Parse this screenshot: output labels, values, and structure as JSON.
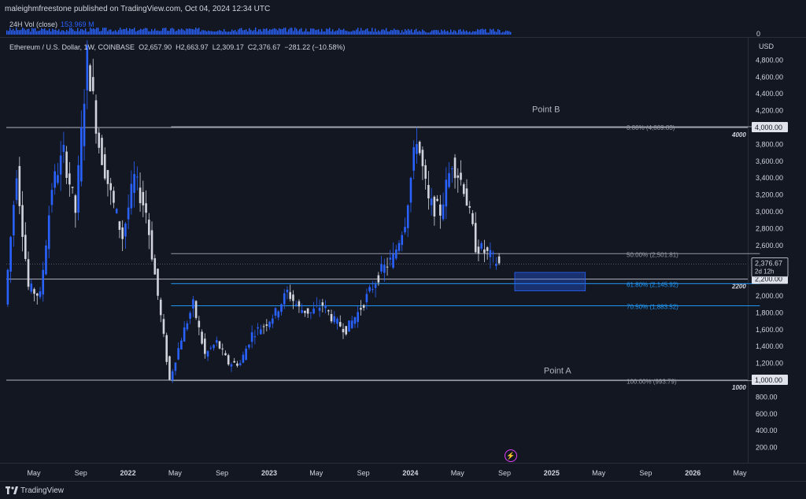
{
  "header": {
    "publisher": "maleighmfreestone published on TradingView.com, Oct 04, 2024 12:34 UTC"
  },
  "volume": {
    "label": "24H Vol (close)",
    "value": "153.969 M",
    "zero_label": "0"
  },
  "legend": {
    "symbol": "Ethereum / U.S. Dollar, 1W, COINBASE",
    "open": "O2,657.90",
    "high": "H2,663.97",
    "low": "L2,309.17",
    "close": "C2,376.67",
    "change": "−281.22 (−10.58%)"
  },
  "footer": {
    "brand": "TradingView"
  },
  "colors": {
    "background": "#131722",
    "up": "#2962ff",
    "down": "#d1d4dc",
    "fib": "#9598a1",
    "fib_blue": "#2196f3"
  },
  "chart_data": {
    "type": "candlestick",
    "currency": "USD",
    "y_ticks": [
      "4,800.00",
      "4,600.00",
      "4,400.00",
      "4,200.00",
      "4,000.00",
      "3,800.00",
      "3,600.00",
      "3,400.00",
      "3,200.00",
      "3,000.00",
      "2,800.00",
      "2,600.00",
      "2,400.00",
      "2,200.00",
      "2,000.00",
      "1,800.00",
      "1,600.00",
      "1,400.00",
      "1,200.00",
      "1,000.00",
      "800.00",
      "600.00",
      "400.00",
      "200.00"
    ],
    "y_tick_values": [
      4800,
      4600,
      4400,
      4200,
      4000,
      3800,
      3600,
      3400,
      3200,
      3000,
      2800,
      2600,
      2400,
      2200,
      2000,
      1800,
      1600,
      1400,
      1200,
      1000,
      800,
      600,
      400,
      200
    ],
    "x_ticks": [
      "May",
      "Sep",
      "2022",
      "May",
      "Sep",
      "2023",
      "May",
      "Sep",
      "2024",
      "May",
      "Sep",
      "2025",
      "May",
      "Sep",
      "2026",
      "May"
    ],
    "x_tick_dates": [
      "2021-05",
      "2021-09",
      "2022-01",
      "2022-05",
      "2022-09",
      "2023-01",
      "2023-05",
      "2023-09",
      "2024-01",
      "2024-05",
      "2024-09",
      "2025-01",
      "2025-05",
      "2025-09",
      "2026-01",
      "2026-05"
    ],
    "x_range": [
      "2021-04",
      "2026-06"
    ],
    "y_range": [
      50,
      5000
    ],
    "price_badges": [
      {
        "label": "4,000.00",
        "value": 4000
      },
      {
        "label": "2,200.00",
        "value": 2200
      },
      {
        "label": "1,000.00",
        "value": 1000
      }
    ],
    "last_price": {
      "label": "2,376.67",
      "sub": "2d 12h",
      "value": 2376.67
    },
    "levels": [
      {
        "label": "4000",
        "value": 4000,
        "from": "2021-04",
        "to": "2026-06"
      },
      {
        "label": "2200",
        "value": 2200,
        "from": "2021-04",
        "to": "2026-06"
      },
      {
        "label": "1000",
        "value": 1000,
        "from": "2021-04",
        "to": "2026-06"
      }
    ],
    "fib_levels": [
      {
        "label": "0.00% (4,009.83)",
        "value": 4009.83,
        "color": "#9598a1"
      },
      {
        "label": "50.00% (2,501.81)",
        "value": 2501.81,
        "color": "#9598a1"
      },
      {
        "label": "61.80% (2,145.92)",
        "value": 2145.92,
        "color": "#2196f3"
      },
      {
        "label": "70.50% (1,883.52)",
        "value": 1883.52,
        "color": "#2196f3"
      },
      {
        "label": "100.00% (993.79)",
        "value": 993.79,
        "color": "#9598a1"
      }
    ],
    "fib_range": {
      "from": "2022-06",
      "to": "2025-10"
    },
    "annotations": [
      {
        "text": "Point B",
        "x": "2024-10",
        "y": 4180
      },
      {
        "text": "Point A",
        "x": "2024-11",
        "y": 1080
      }
    ],
    "zone": {
      "from": "2024-10",
      "to": "2025-04",
      "top": 2280,
      "bottom": 2060
    },
    "price_path": [
      [
        "2021-04",
        1900
      ],
      [
        "2021-05",
        3500
      ],
      [
        "2021-06",
        2100
      ],
      [
        "2021-07",
        2000
      ],
      [
        "2021-08",
        3300
      ],
      [
        "2021-09",
        3700
      ],
      [
        "2021-10",
        3000
      ],
      [
        "2021-11",
        4850
      ],
      [
        "2021-12",
        3800
      ],
      [
        "2022-01",
        3200
      ],
      [
        "2022-02",
        2700
      ],
      [
        "2022-03",
        3400
      ],
      [
        "2022-04",
        3000
      ],
      [
        "2022-05",
        2000
      ],
      [
        "2022-06",
        1000
      ],
      [
        "2022-07",
        1500
      ],
      [
        "2022-08",
        1900
      ],
      [
        "2022-09",
        1300
      ],
      [
        "2022-10",
        1450
      ],
      [
        "2022-11",
        1200
      ],
      [
        "2022-12",
        1200
      ],
      [
        "2023-01",
        1550
      ],
      [
        "2023-02",
        1650
      ],
      [
        "2023-03",
        1800
      ],
      [
        "2023-04",
        2050
      ],
      [
        "2023-05",
        1850
      ],
      [
        "2023-06",
        1800
      ],
      [
        "2023-07",
        1900
      ],
      [
        "2023-08",
        1700
      ],
      [
        "2023-09",
        1600
      ],
      [
        "2023-10",
        1800
      ],
      [
        "2023-11",
        2050
      ],
      [
        "2023-12",
        2300
      ],
      [
        "2024-01",
        2450
      ],
      [
        "2024-02",
        2900
      ],
      [
        "2024-03",
        3900
      ],
      [
        "2024-04",
        3100
      ],
      [
        "2024-05",
        3000
      ],
      [
        "2024-06",
        3600
      ],
      [
        "2024-07",
        3300
      ],
      [
        "2024-08",
        2600
      ],
      [
        "2024-09",
        2500
      ],
      [
        "2024-10",
        2376.67
      ]
    ],
    "volume_max_label": "153.969 M"
  }
}
